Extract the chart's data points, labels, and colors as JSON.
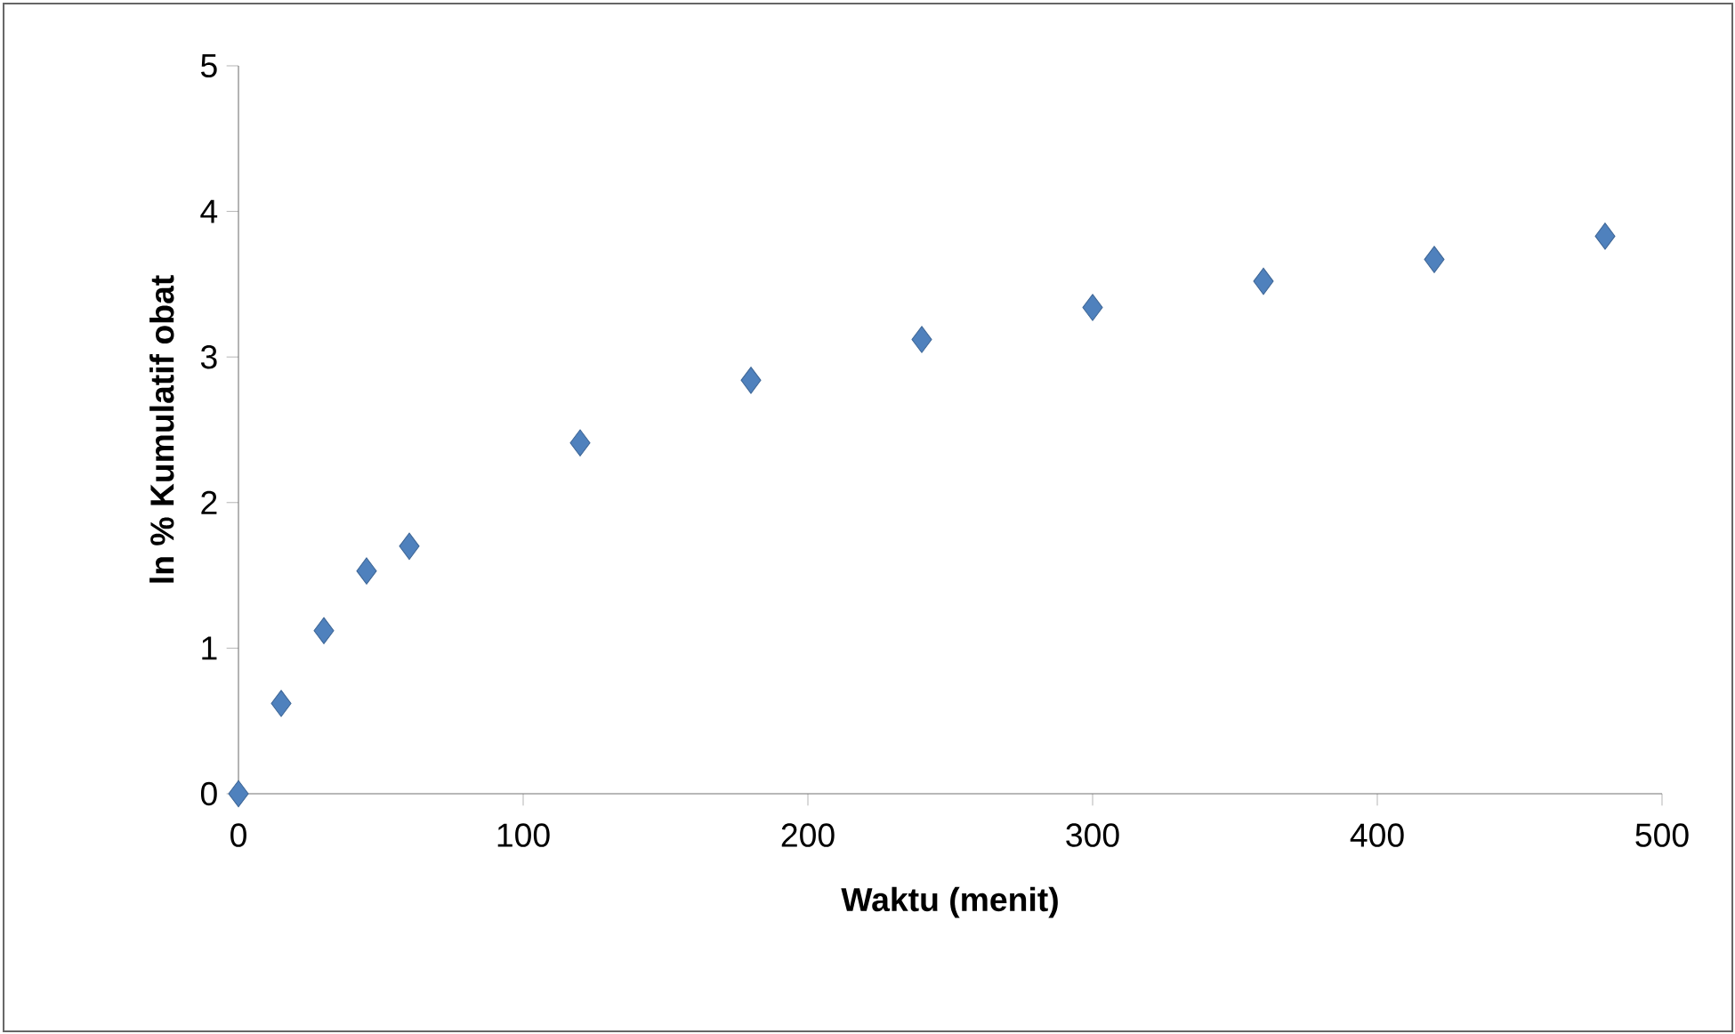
{
  "chart_data": {
    "type": "scatter",
    "xlabel": "Waktu (menit)",
    "ylabel": "ln % Kumulatif obat",
    "x": [
      0,
      15,
      30,
      45,
      60,
      120,
      180,
      240,
      300,
      360,
      420,
      480
    ],
    "values": [
      0,
      0.62,
      1.12,
      1.53,
      1.7,
      2.41,
      2.84,
      3.12,
      3.34,
      3.52,
      3.67,
      3.83
    ],
    "color": "#4f81bd",
    "marker": "diamond",
    "xlim": [
      0,
      500
    ],
    "xticks": [
      0,
      100,
      200,
      300,
      400,
      500
    ],
    "ylim": [
      0,
      5
    ],
    "yticks": [
      0,
      1,
      2,
      3,
      4,
      5
    ]
  }
}
